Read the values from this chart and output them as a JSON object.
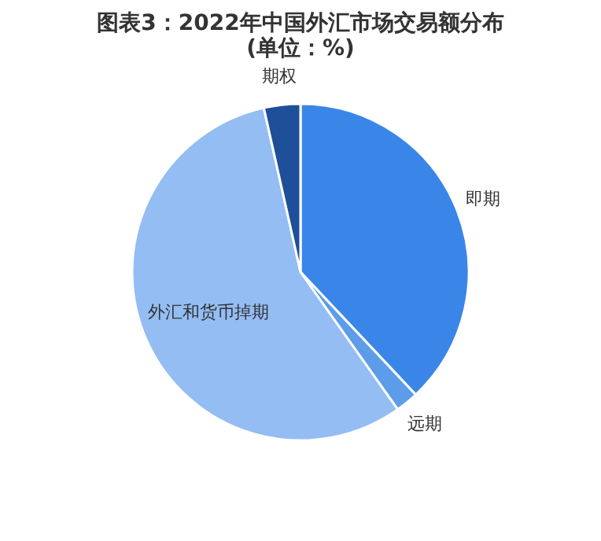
{
  "chart_data": {
    "type": "pie",
    "title": "图表3：2022年中国外汇市场交易额分布(单位：%)",
    "categories": [
      "即期",
      "远期",
      "外汇和货币掉期",
      "期权"
    ],
    "values": [
      38,
      2.2,
      56.3,
      3.5
    ],
    "colors": [
      "#3a86e8",
      "#5c9ce9",
      "#93bdf3",
      "#1f4f98"
    ],
    "legend": false
  }
}
